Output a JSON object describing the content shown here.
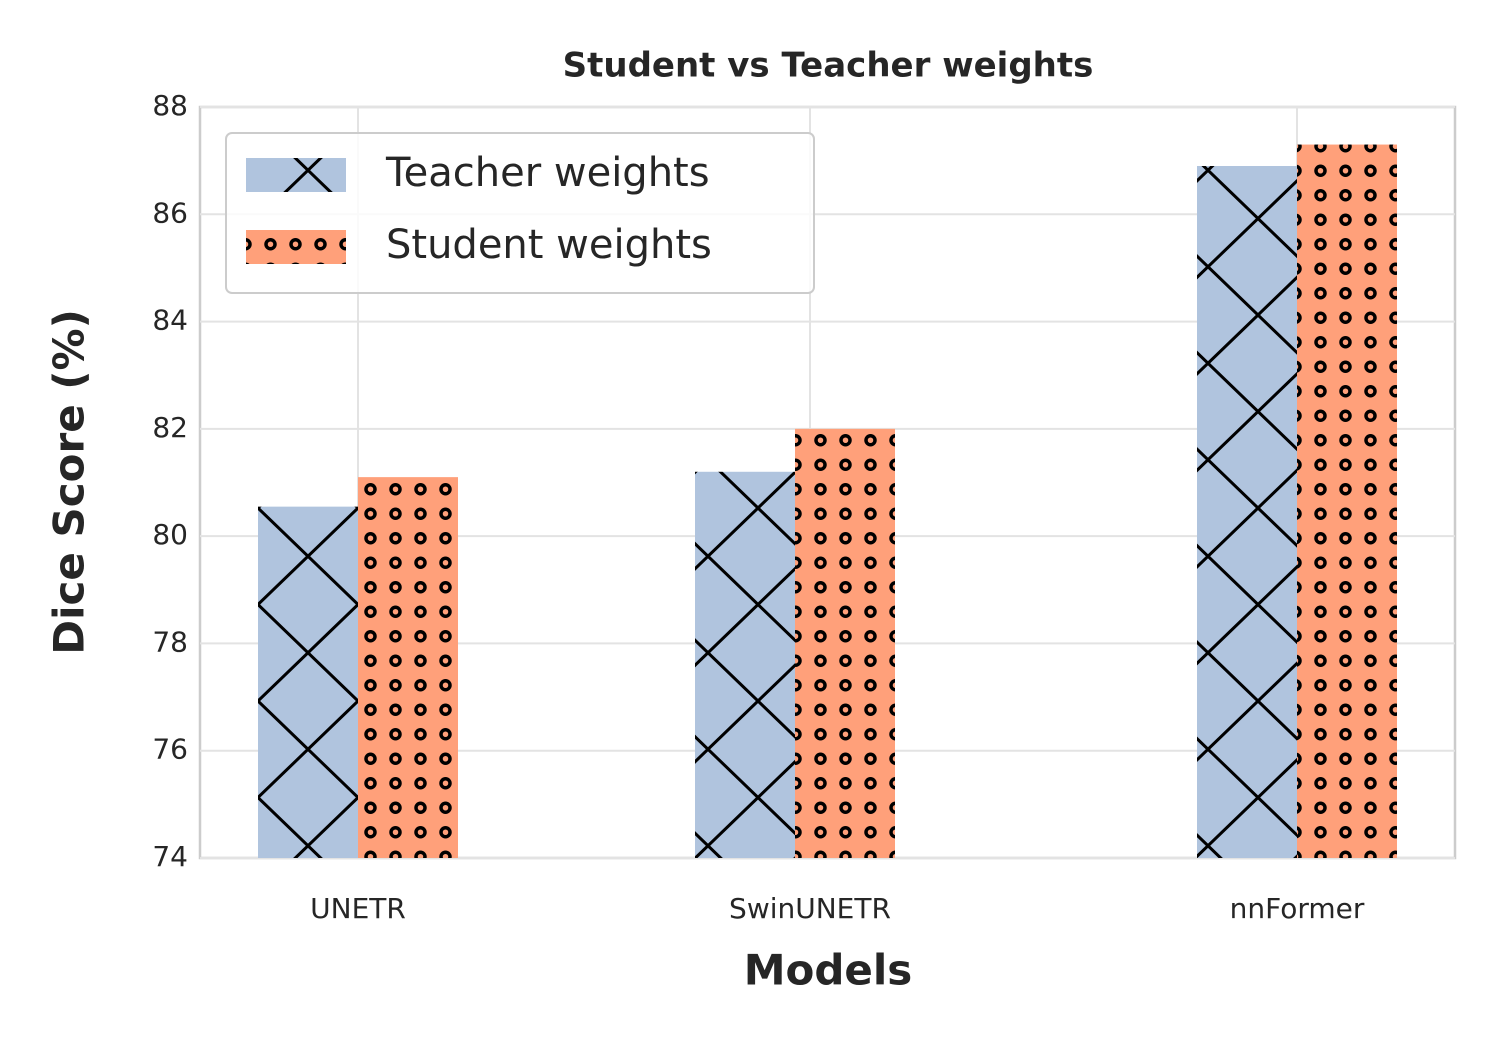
{
  "chart_data": {
    "type": "bar",
    "title": "Student vs Teacher weights",
    "x_label": "Models",
    "y_label": "Dice Score (%)",
    "categories": [
      "UNETR",
      "SwinUNETR",
      "nnFormer"
    ],
    "series": [
      {
        "name": "Teacher weights",
        "color": "#b0c4de",
        "hatch": "x",
        "values": [
          80.55,
          81.2,
          86.9
        ]
      },
      {
        "name": "Student weights",
        "color": "#ffa07a",
        "hatch": "o",
        "values": [
          81.1,
          82.0,
          87.3
        ]
      }
    ],
    "ylim": [
      74,
      88
    ],
    "yticks": [
      74,
      76,
      78,
      80,
      82,
      84,
      86,
      88
    ],
    "grid": true,
    "legend": "upper left"
  }
}
